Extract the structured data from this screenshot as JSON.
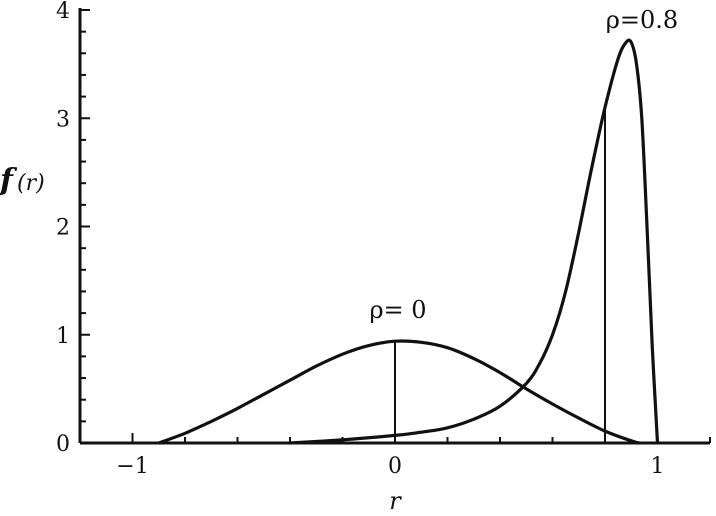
{
  "chart_data": {
    "type": "line",
    "title": "",
    "xlabel": "r",
    "ylabel_main": "f",
    "ylabel_sub": "(r)",
    "xlim": [
      -1.2,
      1.2
    ],
    "ylim": [
      0,
      4
    ],
    "x_ticks": [
      -1,
      0,
      1
    ],
    "x_tick_labels": [
      "−1",
      "0",
      "1"
    ],
    "y_ticks": [
      0,
      1,
      2,
      3,
      4
    ],
    "y_tick_labels": [
      "0",
      "1",
      "2",
      "3",
      "4"
    ],
    "grid": false,
    "color": "#111111",
    "series": [
      {
        "name": "ρ=0",
        "label_text": "ρ= 0",
        "x": [
          -0.9,
          -0.8,
          -0.7,
          -0.6,
          -0.5,
          -0.4,
          -0.3,
          -0.2,
          -0.1,
          0.0,
          0.1,
          0.2,
          0.3,
          0.4,
          0.5,
          0.6,
          0.7,
          0.8,
          0.9,
          0.93
        ],
        "y": [
          0.0,
          0.09,
          0.2,
          0.32,
          0.45,
          0.58,
          0.71,
          0.82,
          0.9,
          0.94,
          0.93,
          0.88,
          0.78,
          0.65,
          0.5,
          0.36,
          0.23,
          0.11,
          0.02,
          0.0
        ],
        "markers": [
          {
            "x": 0.0,
            "y": 0.94
          }
        ]
      },
      {
        "name": "ρ=0.8",
        "label_text": "ρ=0.8",
        "x": [
          -0.4,
          -0.2,
          0.0,
          0.1,
          0.2,
          0.3,
          0.4,
          0.5,
          0.55,
          0.6,
          0.65,
          0.7,
          0.75,
          0.8,
          0.85,
          0.88,
          0.9,
          0.92,
          0.94,
          0.96,
          0.98,
          1.0
        ],
        "y": [
          0.0,
          0.03,
          0.07,
          0.1,
          0.14,
          0.22,
          0.34,
          0.55,
          0.73,
          1.0,
          1.4,
          1.95,
          2.55,
          3.1,
          3.55,
          3.7,
          3.7,
          3.5,
          3.0,
          2.0,
          0.9,
          0.0
        ],
        "markers": [
          {
            "x": 0.8,
            "y": 3.1
          }
        ]
      }
    ]
  }
}
